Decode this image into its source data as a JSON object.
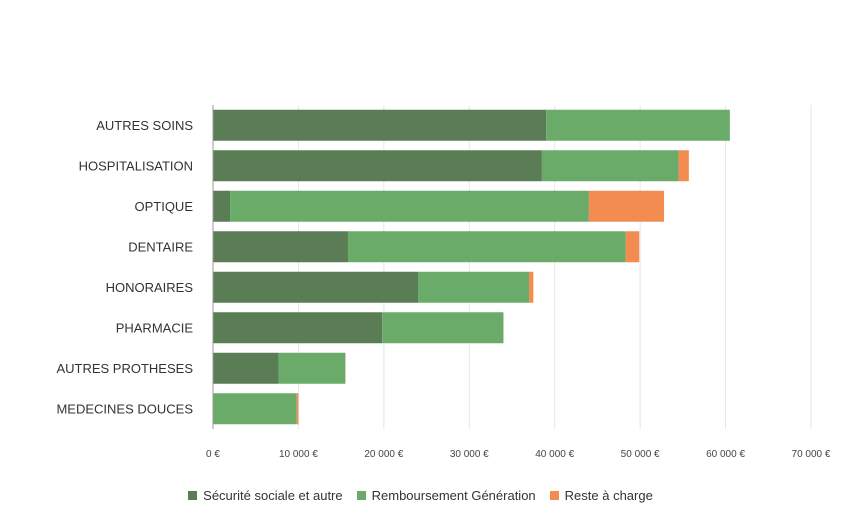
{
  "chart_data": {
    "type": "bar",
    "orientation": "horizontal",
    "stacked": true,
    "categories": [
      "AUTRES SOINS",
      "HOSPITALISATION",
      "OPTIQUE",
      "DENTAIRE",
      "HONORAIRES",
      "PHARMACIE",
      "AUTRES PROTHESES",
      "MEDECINES DOUCES"
    ],
    "series": [
      {
        "name": "Sécurité sociale et autre",
        "color": "#5a7d55",
        "values": [
          39000,
          38500,
          2000,
          15800,
          24000,
          19800,
          7700,
          0
        ]
      },
      {
        "name": "Remboursement Génération",
        "color": "#6aab6a",
        "values": [
          21500,
          16000,
          42000,
          32500,
          13000,
          14200,
          7800,
          9800
        ]
      },
      {
        "name": "Reste à charge",
        "color": "#f28c50",
        "values": [
          0,
          1200,
          8800,
          1600,
          500,
          0,
          0,
          200
        ]
      }
    ],
    "xlim": [
      0,
      70000
    ],
    "x_ticks": [
      0,
      10000,
      20000,
      30000,
      40000,
      50000,
      60000,
      70000
    ],
    "x_tick_labels": [
      "0 €",
      "10 000 €",
      "20 000 €",
      "30 000 €",
      "40 000 €",
      "50 000 €",
      "60 000 €",
      "70 000 €"
    ],
    "grid": "vertical",
    "legend_position": "bottom"
  }
}
